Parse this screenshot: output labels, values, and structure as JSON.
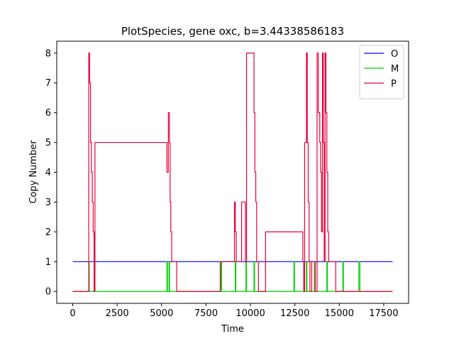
{
  "chart_data": {
    "type": "line",
    "title": "PlotSpecies, gene oxc, b=3.44338586183",
    "xlabel": "Time",
    "ylabel": "Copy Number",
    "xlim": [
      -900,
      18900
    ],
    "ylim": [
      -0.4,
      8.4
    ],
    "xticks": [
      0,
      2500,
      5000,
      7500,
      10000,
      12500,
      15000,
      17500
    ],
    "yticks": [
      0,
      1,
      2,
      3,
      4,
      5,
      6,
      7,
      8
    ],
    "grid": false,
    "legend_position": "top-right",
    "series": [
      {
        "name": "O",
        "color": "#0000ff",
        "x": [
          0,
          18000
        ],
        "y": [
          1,
          1
        ]
      },
      {
        "name": "M",
        "color": "#00cc00",
        "x": [
          0,
          900,
          900,
          930,
          930,
          5300,
          5300,
          5330,
          5330,
          5420,
          5420,
          5450,
          5450,
          8350,
          8350,
          8380,
          8380,
          9150,
          9150,
          9180,
          9180,
          9750,
          9750,
          9780,
          9780,
          10200,
          10200,
          10230,
          10230,
          12450,
          12450,
          12480,
          12480,
          13150,
          13150,
          13180,
          13180,
          13600,
          13600,
          13630,
          13630,
          14300,
          14300,
          14330,
          14330,
          15200,
          15200,
          15230,
          15230,
          16100,
          16100,
          16160,
          16160,
          18000
        ],
        "y": [
          0,
          0,
          1,
          1,
          0,
          0,
          1,
          1,
          0,
          0,
          1,
          1,
          0,
          0,
          1,
          1,
          0,
          0,
          1,
          1,
          0,
          0,
          1,
          1,
          0,
          0,
          1,
          1,
          0,
          0,
          1,
          1,
          0,
          0,
          1,
          1,
          0,
          0,
          1,
          1,
          0,
          0,
          1,
          1,
          0,
          0,
          1,
          1,
          0,
          0,
          1,
          1,
          0,
          0
        ]
      },
      {
        "name": "P",
        "color": "#e8003a",
        "x": [
          0,
          900,
          900,
          950,
          950,
          1000,
          1000,
          1050,
          1050,
          1100,
          1100,
          1150,
          1150,
          1200,
          1200,
          1250,
          1250,
          5300,
          5300,
          5380,
          5380,
          5440,
          5440,
          5480,
          5480,
          5520,
          5520,
          5570,
          5570,
          5620,
          5620,
          5700,
          5700,
          5850,
          5850,
          8300,
          8300,
          9100,
          9100,
          9150,
          9150,
          9200,
          9200,
          9260,
          9260,
          9500,
          9500,
          9720,
          9720,
          9780,
          9780,
          10200,
          10200,
          10250,
          10250,
          10300,
          10300,
          10350,
          10350,
          10450,
          10450,
          10850,
          10850,
          12950,
          12950,
          13000,
          13000,
          13050,
          13050,
          13150,
          13150,
          13200,
          13200,
          13250,
          13250,
          13300,
          13300,
          13350,
          13350,
          13450,
          13450,
          13550,
          13550,
          13650,
          13650,
          13750,
          13750,
          13820,
          13820,
          13900,
          13900,
          13950,
          13950,
          14000,
          14000,
          14050,
          14050,
          14100,
          14100,
          14150,
          14150,
          14200,
          14200,
          14250,
          14250,
          14300,
          14300,
          14350,
          14350,
          14400,
          14400,
          14500,
          14500,
          14600,
          14600,
          14800,
          14800,
          18000
        ],
        "y": [
          0,
          0,
          8,
          8,
          7,
          7,
          5,
          5,
          4,
          4,
          3,
          3,
          2,
          2,
          0,
          0,
          5,
          5,
          4,
          4,
          6,
          6,
          5,
          5,
          3,
          3,
          2,
          2,
          1,
          1,
          1,
          1,
          1,
          1,
          0,
          0,
          1,
          1,
          3,
          3,
          2,
          2,
          1,
          1,
          1,
          1,
          3,
          3,
          1,
          1,
          8,
          8,
          6,
          6,
          4,
          4,
          3,
          3,
          1,
          1,
          0,
          0,
          2,
          2,
          1,
          1,
          0,
          0,
          5,
          5,
          8,
          8,
          5,
          5,
          3,
          3,
          1,
          1,
          0,
          0,
          1,
          1,
          1,
          1,
          0,
          0,
          8,
          8,
          6,
          6,
          5,
          5,
          4,
          4,
          2,
          2,
          8,
          8,
          5,
          5,
          1,
          1,
          8,
          8,
          6,
          6,
          4,
          4,
          2,
          2,
          1,
          1,
          1,
          1,
          1,
          1,
          0,
          0
        ]
      }
    ]
  }
}
